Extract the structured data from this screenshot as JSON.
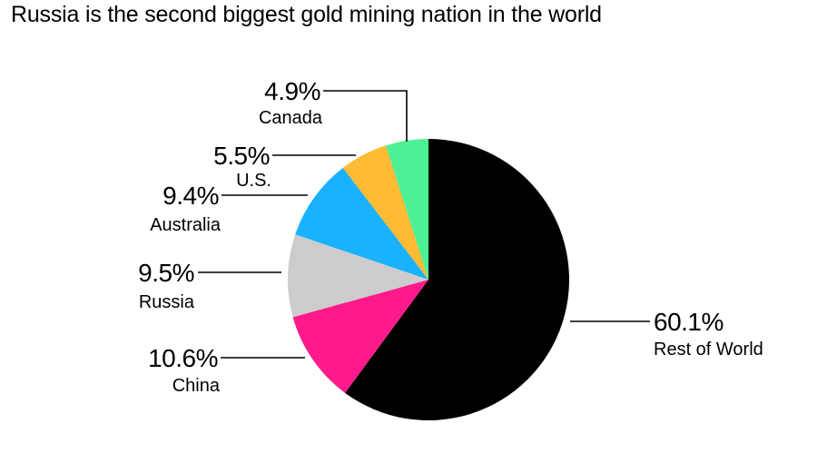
{
  "chart_data": {
    "type": "pie",
    "title": "Russia is the second biggest gold mining nation in the world",
    "slices": [
      {
        "label": "Rest of World",
        "value": 60.1,
        "value_label": "60.1%",
        "color": "#000000"
      },
      {
        "label": "China",
        "value": 10.6,
        "value_label": "10.6%",
        "color": "#ff1a8c"
      },
      {
        "label": "Russia",
        "value": 9.5,
        "value_label": "9.5%",
        "color": "#cccccc"
      },
      {
        "label": "Australia",
        "value": 9.4,
        "value_label": "9.4%",
        "color": "#1ab2ff"
      },
      {
        "label": "U.S.",
        "value": 5.5,
        "value_label": "5.5%",
        "color": "#ffbb33"
      },
      {
        "label": "Canada",
        "value": 4.9,
        "value_label": "4.9%",
        "color": "#4df095"
      }
    ]
  }
}
